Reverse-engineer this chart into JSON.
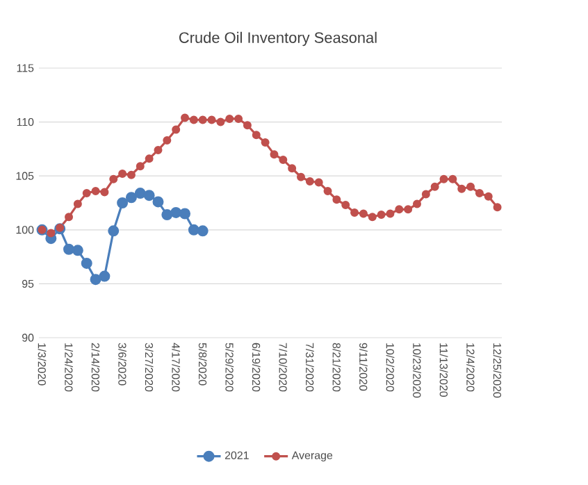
{
  "chart_data": {
    "type": "line",
    "title": "Crude Oil Inventory Seasonal",
    "categories": [
      "1/3/2020",
      null,
      null,
      "1/24/2020",
      null,
      null,
      "2/14/2020",
      null,
      null,
      "3/6/2020",
      null,
      null,
      "3/27/2020",
      null,
      null,
      "4/17/2020",
      null,
      null,
      "5/8/2020",
      null,
      null,
      "5/29/2020",
      null,
      null,
      "6/19/2020",
      null,
      null,
      "7/10/2020",
      null,
      null,
      "7/31/2020",
      null,
      null,
      "8/21/2020",
      null,
      null,
      "9/11/2020",
      null,
      null,
      "10/2/2020",
      null,
      null,
      "10/23/2020",
      null,
      null,
      "11/13/2020",
      null,
      null,
      "12/4/2020",
      null,
      null,
      "12/25/2020"
    ],
    "series": [
      {
        "name": "2021",
        "color": "#4a7ebb",
        "values": [
          100.0,
          99.2,
          100.1,
          98.2,
          98.1,
          96.9,
          95.4,
          95.7,
          99.9,
          102.5,
          103.0,
          103.4,
          103.2,
          102.6,
          101.4,
          101.6,
          101.5,
          100.0,
          99.9,
          null,
          null,
          null,
          null,
          null,
          null,
          null,
          null,
          null,
          null,
          null,
          null,
          null,
          null,
          null,
          null,
          null,
          null,
          null,
          null,
          null,
          null,
          null,
          null,
          null,
          null,
          null,
          null,
          null,
          null,
          null,
          null,
          null
        ]
      },
      {
        "name": "Average",
        "color": "#c0504d",
        "values": [
          100.0,
          99.7,
          100.2,
          101.2,
          102.4,
          103.4,
          103.6,
          103.5,
          104.7,
          105.2,
          105.1,
          105.9,
          106.6,
          107.4,
          108.3,
          109.3,
          110.4,
          110.2,
          110.2,
          110.2,
          110.0,
          110.3,
          110.3,
          109.7,
          108.8,
          108.1,
          107.0,
          106.5,
          105.7,
          104.9,
          104.5,
          104.4,
          103.6,
          102.8,
          102.3,
          101.6,
          101.5,
          101.2,
          101.4,
          101.5,
          101.9,
          101.9,
          102.4,
          103.3,
          104.0,
          104.7,
          104.7,
          103.8,
          104.0,
          103.4,
          103.1,
          102.1
        ]
      }
    ],
    "ylim": [
      90,
      115
    ],
    "yticks": [
      90,
      95,
      100,
      105,
      110,
      115
    ],
    "grid": "y",
    "legend": "bottom",
    "marker": "circle"
  }
}
